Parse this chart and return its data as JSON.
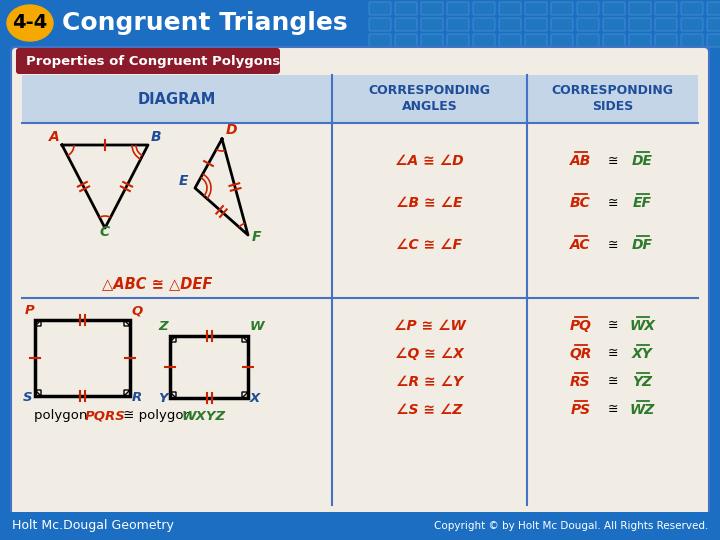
{
  "title": "Congruent Triangles",
  "title_badge": "4-4",
  "badge_bg": "#F5A800",
  "header_bg": "#1B6EC2",
  "header_grid_color": "#3A85CC",
  "section_title": "Properties of Congruent Polygons",
  "section_title_bg": "#8B1A2B",
  "table_header_bg": "#C5D5E8",
  "table_bg": "#F2EDE4",
  "table_border": "#4472C4",
  "col1_header": "DIAGRAM",
  "col2_header": "CORRESPONDING\nANGLES",
  "col3_header": "CORRESPONDING\nSIDES",
  "angles_row1": [
    "∠A ≅ ∠D",
    "∠B ≅ ∠E",
    "∠C ≅ ∠F"
  ],
  "sides_row1_left": [
    "AB",
    "BC",
    "AC"
  ],
  "sides_row1_right": [
    "DE",
    "EF",
    "DF"
  ],
  "angles_row2": [
    "∠P ≅ ∠W",
    "∠Q ≅ ∠X",
    "∠R ≅ ∠Y",
    "∠S ≅ ∠Z"
  ],
  "sides_row2_left": [
    "PQ",
    "QR",
    "RS",
    "PS"
  ],
  "sides_row2_right": [
    "WX",
    "XY",
    "YZ",
    "WZ"
  ],
  "triangle_label": "△ABC ≅ △DEF",
  "footer_left": "Holt Mc.Dougal Geometry",
  "footer_right": "Copyright © by Holt Mc Dougal. All Rights Reserved.",
  "footer_bg": "#1B6EC2",
  "red_color": "#CC2200",
  "green_color": "#2D7A2D",
  "blue_color": "#1E4D9A",
  "dark_red": "#8B1A2B"
}
